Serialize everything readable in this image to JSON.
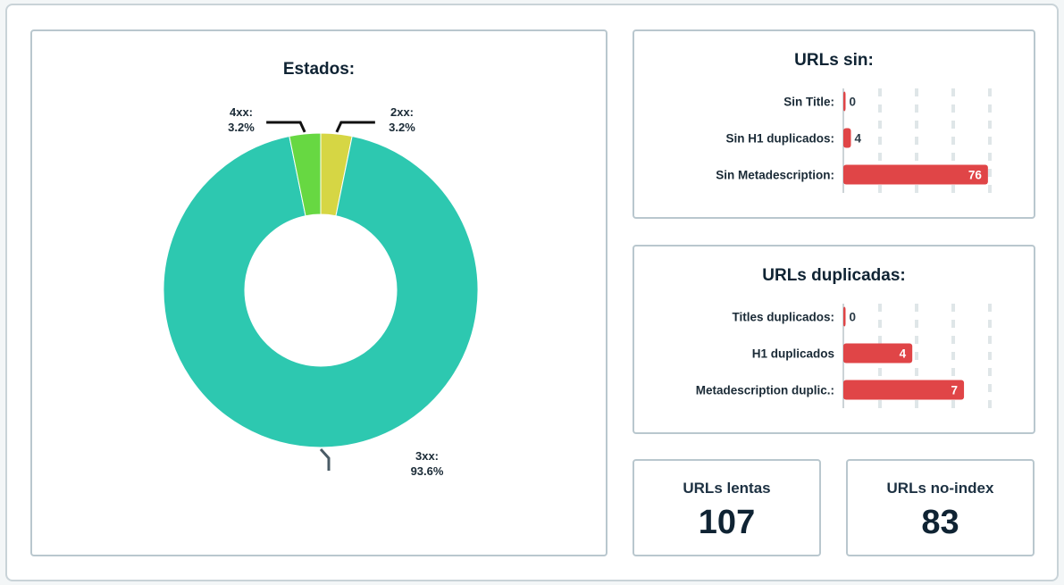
{
  "colors": {
    "bar": "#e04547",
    "grid": "#dfe6e8",
    "axis": "#9aa7ad"
  },
  "donut": {
    "title": "Estados:",
    "chart_data": {
      "type": "pie",
      "title": "Estados:",
      "slices": [
        {
          "label": "2xx",
          "value": 3.2,
          "display": "3.2%",
          "color": "#d6d644"
        },
        {
          "label": "3xx",
          "value": 93.6,
          "display": "93.6%",
          "color": "#2dc8b0"
        },
        {
          "label": "4xx",
          "value": 3.2,
          "display": "3.2%",
          "color": "#67d842"
        }
      ]
    }
  },
  "urls_sin": {
    "title": "URLs sin:",
    "chart_data": {
      "type": "bar",
      "orientation": "horizontal",
      "title": "URLs sin:",
      "categories": [
        "Sin Title:",
        "Sin H1 duplicados:",
        "Sin Metadescription:"
      ],
      "values": [
        0,
        4,
        76
      ],
      "xlim": [
        0,
        77
      ],
      "grid": true
    }
  },
  "urls_dup": {
    "title": "URLs duplicadas:",
    "chart_data": {
      "type": "bar",
      "orientation": "horizontal",
      "title": "URLs duplicadas:",
      "categories": [
        "Titles duplicados:",
        "H1 duplicados",
        "Metadescription duplic.:"
      ],
      "values": [
        0,
        4,
        7
      ],
      "xlim": [
        0,
        8.5
      ],
      "grid": true
    }
  },
  "kpis": {
    "lentas": {
      "label": "URLs lentas",
      "value": "107"
    },
    "noindex": {
      "label": "URLs no-index",
      "value": "83"
    }
  }
}
